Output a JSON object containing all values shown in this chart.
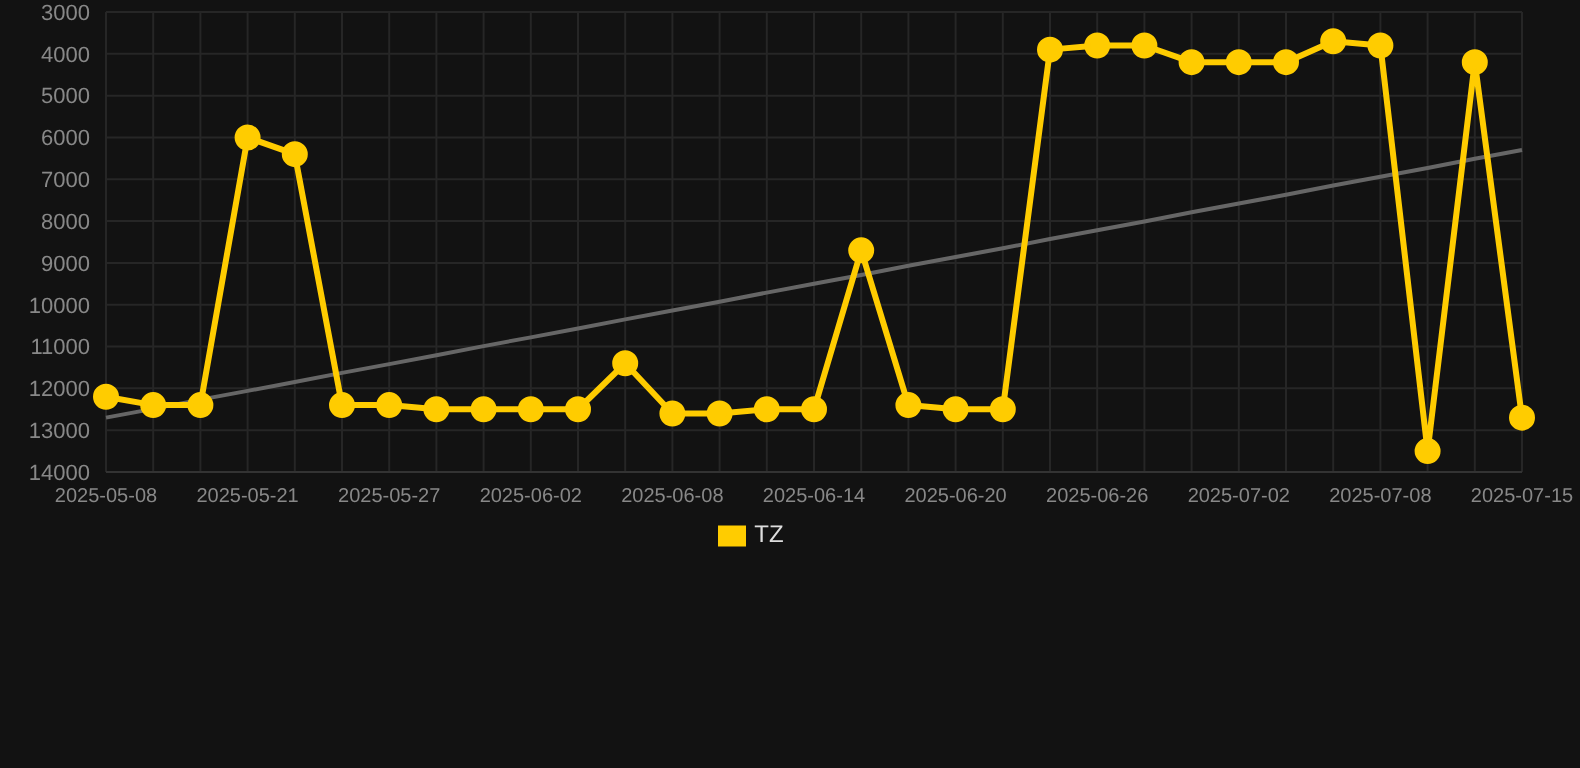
{
  "chart_data": {
    "type": "line",
    "categories": [
      "2025-05-08",
      null,
      null,
      "2025-05-21",
      null,
      null,
      "2025-05-27",
      null,
      null,
      "2025-06-02",
      null,
      null,
      "2025-06-08",
      null,
      null,
      "2025-06-14",
      null,
      null,
      "2025-06-20",
      null,
      null,
      "2025-06-26",
      null,
      null,
      "2025-07-02",
      null,
      null,
      "2025-07-08",
      null,
      null,
      "2025-07-15"
    ],
    "series": [
      {
        "name": "TZ",
        "color": "#ffcc00",
        "values": [
          12200,
          12400,
          12400,
          6000,
          6400,
          12400,
          12400,
          12500,
          12500,
          12500,
          12500,
          11400,
          12600,
          12600,
          12500,
          12500,
          8700,
          12400,
          12500,
          12500,
          3900,
          3800,
          3800,
          4200,
          4200,
          4200,
          3700,
          3800,
          13500,
          4200,
          12700
        ]
      },
      {
        "type": "line",
        "color": "#666666",
        "marker": "none",
        "values": [
          12700,
          12490,
          12270,
          12060,
          11850,
          11630,
          11420,
          11210,
          10990,
          10780,
          10570,
          10350,
          10140,
          9930,
          9710,
          9500,
          9290,
          9070,
          8860,
          8650,
          8430,
          8220,
          8010,
          7790,
          7580,
          7370,
          7150,
          6940,
          6730,
          6510,
          6300
        ]
      }
    ],
    "ylim": [
      14000,
      3000
    ],
    "yticks": [
      3000,
      4000,
      5000,
      6000,
      7000,
      8000,
      9000,
      10000,
      11000,
      12000,
      13000,
      14000
    ],
    "grid": true,
    "legend": "bottom",
    "marker": "circle",
    "line_style": "solid"
  }
}
